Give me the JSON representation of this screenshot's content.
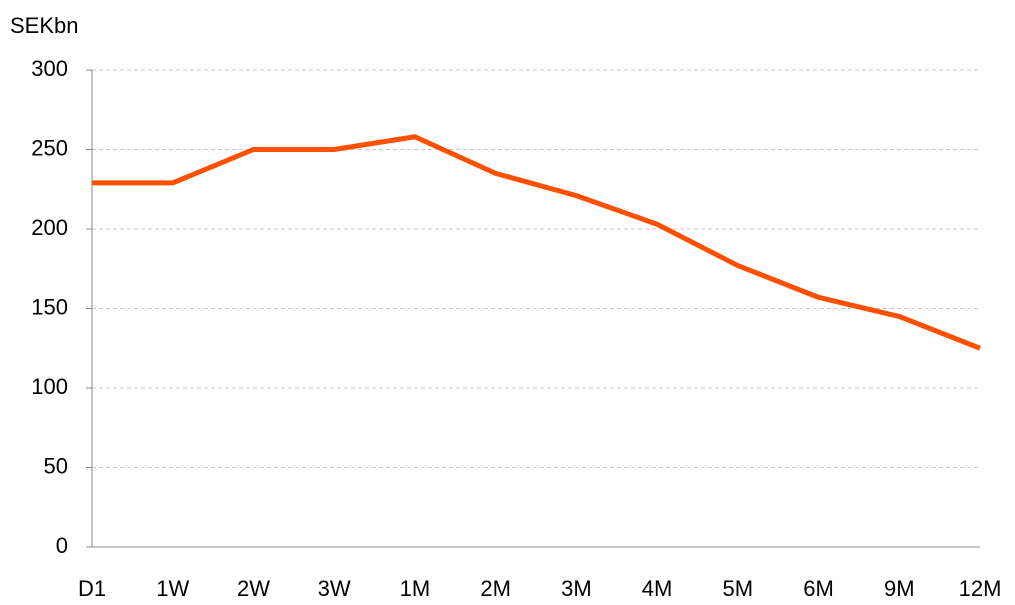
{
  "chart_data": {
    "type": "line",
    "y_axis_label": "SEKbn",
    "categories": [
      "D1",
      "1W",
      "2W",
      "3W",
      "1M",
      "2M",
      "3M",
      "4M",
      "5M",
      "6M",
      "9M",
      "12M"
    ],
    "series": [
      {
        "name": "SEKbn",
        "color": "#ff5000",
        "values": [
          229,
          229,
          250,
          250,
          258,
          235,
          221,
          203,
          177,
          157,
          145,
          125
        ]
      }
    ],
    "ylim": [
      0,
      300
    ],
    "yticks": [
      0,
      50,
      100,
      150,
      200,
      250,
      300
    ],
    "grid": true
  }
}
